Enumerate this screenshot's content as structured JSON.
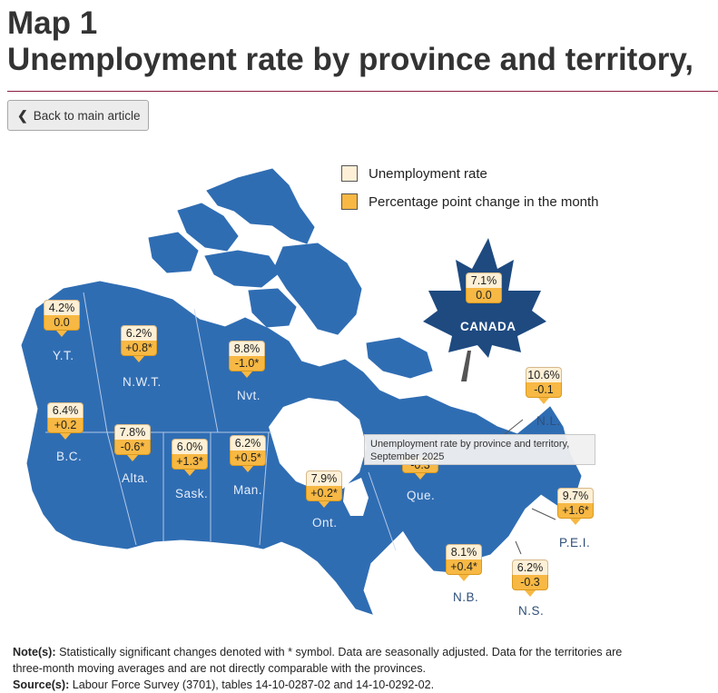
{
  "title": {
    "line1": "Map 1",
    "line2": "Unemployment rate by province and territory,"
  },
  "back_button": {
    "label": "Back to main article"
  },
  "legend": {
    "rate_label": "Unemployment rate",
    "change_label": "Percentage point change in the month",
    "rate_color": "#fdf0d6",
    "change_color": "#f7b844"
  },
  "map_color": "#2f6db3",
  "canada": {
    "label": "CANADA",
    "rate": "7.1%",
    "change": "0.0"
  },
  "regions": [
    {
      "name": "Y.T.",
      "rate": "4.2%",
      "change": "0.0"
    },
    {
      "name": "N.W.T.",
      "rate": "6.2%",
      "change": "+0.8*"
    },
    {
      "name": "Nvt.",
      "rate": "8.8%",
      "change": "-1.0*"
    },
    {
      "name": "B.C.",
      "rate": "6.4%",
      "change": "+0.2"
    },
    {
      "name": "Alta.",
      "rate": "7.8%",
      "change": "-0.6*"
    },
    {
      "name": "Sask.",
      "rate": "6.0%",
      "change": "+1.3*"
    },
    {
      "name": "Man.",
      "rate": "6.2%",
      "change": "+0.5*"
    },
    {
      "name": "Ont.",
      "rate": "7.9%",
      "change": "+0.2*"
    },
    {
      "name": "Que.",
      "rate": "",
      "change": "-0.3"
    },
    {
      "name": "N.L.",
      "rate": "10.6%",
      "change": "-0.1"
    },
    {
      "name": "P.E.I.",
      "rate": "9.7%",
      "change": "+1.6*"
    },
    {
      "name": "N.B.",
      "rate": "8.1%",
      "change": "+0.4*"
    },
    {
      "name": "N.S.",
      "rate": "6.2%",
      "change": "-0.3"
    }
  ],
  "tooltip": {
    "line1": "Unemployment rate by province and territory,",
    "line2": "September 2025"
  },
  "notes": {
    "note_label": "Note(s):",
    "note_text": "Statistically significant changes denoted with * symbol. Data are seasonally adjusted. Data for the territories are three-month moving averages and are not directly comparable with the provinces.",
    "source_label": "Source(s):",
    "source_text": "Labour Force Survey (3701), tables 14-10-0287-02 and 14-10-0292-02."
  }
}
